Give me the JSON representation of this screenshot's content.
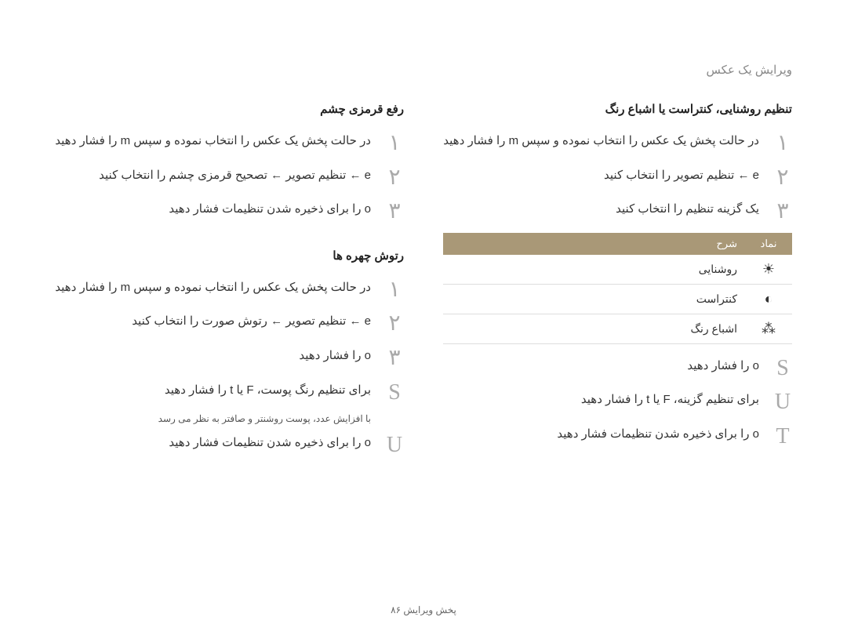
{
  "page_header": "ویرایش یک عکس",
  "right_col": {
    "sec1": {
      "title": "رفع قرمزی چشم",
      "steps": [
        "در حالت پخش یک عکس را انتخاب نموده و سپس  m  را فشار دهید",
        " e  ← تنظیم تصویر ← تصحیح قرمزی چشم را انتخاب کنید",
        " o  را برای ذخیره شدن تنظیمات فشار دهید"
      ]
    },
    "sec2": {
      "title": "رتوش چهره ها",
      "steps": [
        "در حالت پخش یک عکس را انتخاب نموده و سپس  m  را فشار دهید",
        " e  ← تنظیم تصویر ← رتوش صورت را انتخاب کنید",
        " o  را فشار دهید",
        "برای تنظیم رنگ پوست،  F  یا  t  را فشار دهید",
        " o  را برای ذخیره شدن تنظیمات فشار دهید"
      ],
      "note": "با افزایش عدد، پوست روشنتر و صافتر به نظر می رسد"
    }
  },
  "left_col": {
    "sec1": {
      "title": "تنظیم روشنایی، کنتراست یا اشباع رنگ",
      "steps_top": [
        "در حالت پخش یک عکس را انتخاب نموده و سپس  m  را فشار دهید",
        " e  ← تنظیم تصویر را انتخاب کنید",
        "یک گزینه تنظیم را انتخاب کنید"
      ],
      "table": {
        "head_icon": "نماد",
        "head_desc": "شرح",
        "rows": [
          {
            "icon": "☀",
            "desc": "روشنایی"
          },
          {
            "icon": "◐",
            "desc": "کنتراست"
          },
          {
            "icon": "⁂",
            "desc": "اشباع رنگ"
          }
        ]
      },
      "steps_bottom": [
        " o  را فشار دهید",
        "برای تنظیم گزینه،  F  یا  t  را فشار دهید",
        " o  را برای ذخیره شدن تنظیمات فشار دهید"
      ]
    }
  },
  "footer": "پخش ویرایش  ۸۶",
  "step_markers_right_sec1": [
    "۱",
    "۲",
    "۳"
  ],
  "step_markers_right_sec2": [
    "۱",
    "۲",
    "۳",
    "S",
    "U"
  ],
  "step_markers_left_top": [
    "۱",
    "۲",
    "۳"
  ],
  "step_markers_left_bottom": [
    "S",
    "U",
    "T"
  ]
}
